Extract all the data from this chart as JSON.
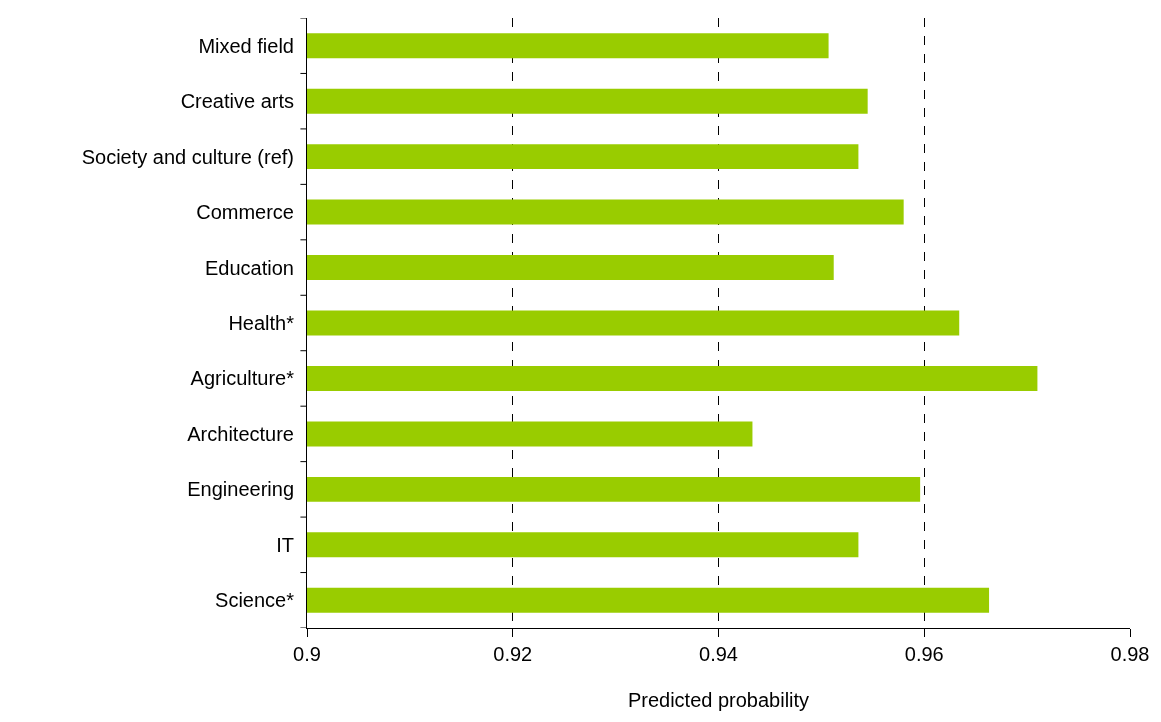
{
  "chart_data": {
    "type": "bar",
    "orientation": "horizontal",
    "xlabel": "Predicted probability",
    "categories": [
      "Mixed field",
      "Creative arts",
      "Society and culture (ref)",
      "Commerce",
      "Education",
      "Health*",
      "Agriculture*",
      "Architecture",
      "Engineering",
      "IT",
      "Science*"
    ],
    "values": [
      0.9507,
      0.9545,
      0.9536,
      0.958,
      0.9512,
      0.9634,
      0.971,
      0.9433,
      0.9596,
      0.9536,
      0.9663
    ],
    "color": "#99cc00",
    "xlim": [
      0.9,
      0.98
    ],
    "xticks": [
      0.9,
      0.92,
      0.94,
      0.96,
      0.98
    ],
    "grid": "x",
    "legend": false
  }
}
